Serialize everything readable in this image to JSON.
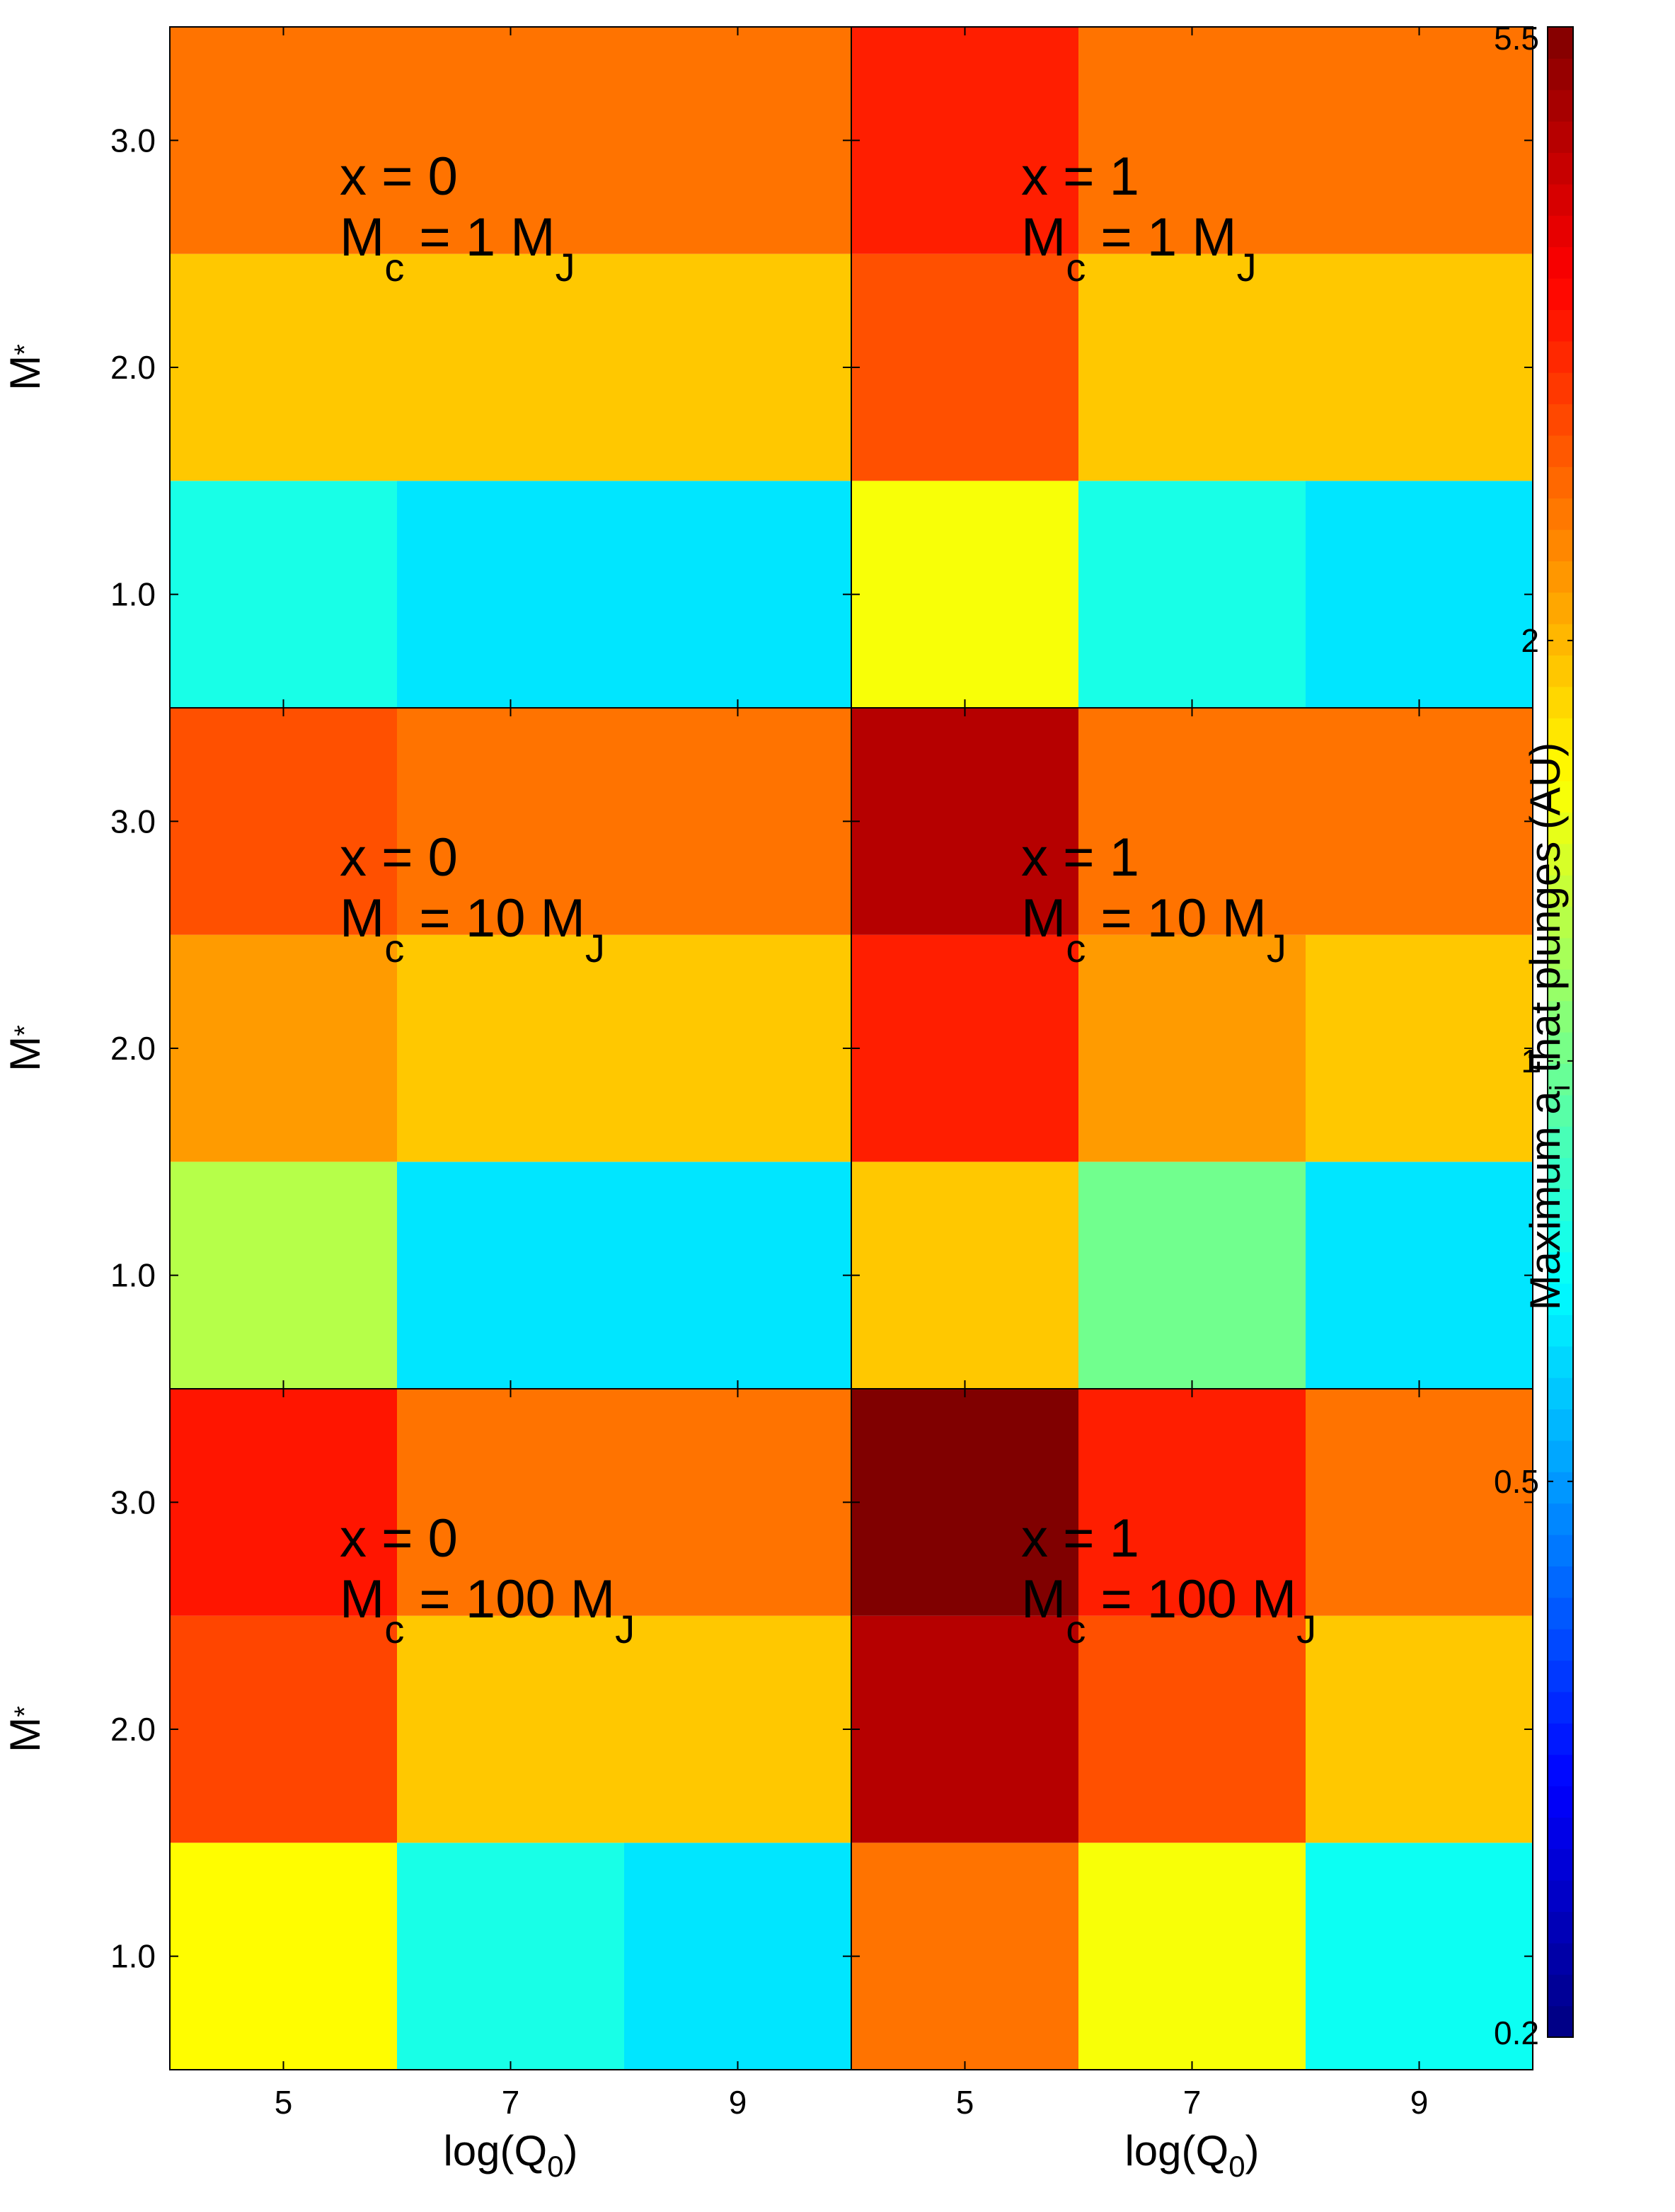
{
  "chart_data": {
    "type": "heatmap",
    "rows": 3,
    "cols": 2,
    "colorbar": {
      "label": "Maximum a",
      "label_sub": "i",
      "label_rest": " that plunges (AU)",
      "scale": "log",
      "range": [
        0.2,
        5.5
      ],
      "ticks": [
        {
          "value": 0.2,
          "text": "0.2"
        },
        {
          "value": 0.5,
          "text": "0.5"
        },
        {
          "value": 1,
          "text": "1"
        },
        {
          "value": 2,
          "text": "2"
        },
        {
          "value": 5.5,
          "text": "5.5"
        }
      ]
    },
    "x_axis": {
      "label": "log(Q",
      "label_sub": "0",
      "label_close": ")",
      "ticks": [
        {
          "value": 5,
          "text": "5"
        },
        {
          "value": 7,
          "text": "7"
        },
        {
          "value": 9,
          "text": "9"
        }
      ],
      "range": [
        4,
        10
      ],
      "categories": [
        5,
        7,
        9
      ]
    },
    "y_axis": {
      "label": "M",
      "label_sub": "*",
      "ticks": [
        {
          "value": 1,
          "text": "1.0"
        },
        {
          "value": 2,
          "text": "2.0"
        },
        {
          "value": 3,
          "text": "3.0"
        }
      ],
      "range": [
        0.5,
        3.5
      ],
      "categories": [
        1.0,
        2.0,
        3.0
      ]
    },
    "panels": [
      {
        "x_text": "x = 0",
        "mc_pre": "M",
        "mc_sub": "c",
        "mc_mid": " = 1 M",
        "mc_sub2": "J",
        "values": [
          [
            0.75,
            0.64,
            0.64
          ],
          [
            1.9,
            1.9,
            1.9
          ],
          [
            2.5,
            2.5,
            2.5
          ]
        ]
      },
      {
        "x_text": "x = 1",
        "mc_pre": "M",
        "mc_sub": "c",
        "mc_mid": " = 1 M",
        "mc_sub2": "J",
        "values": [
          [
            1.55,
            0.75,
            0.64
          ],
          [
            2.8,
            1.9,
            1.9
          ],
          [
            3.3,
            2.5,
            2.5
          ]
        ]
      },
      {
        "x_text": "x = 0",
        "mc_pre": "M",
        "mc_sub": "c",
        "mc_mid": " = 10 M",
        "mc_sub2": "J",
        "values": [
          [
            1.25,
            0.64,
            0.64
          ],
          [
            2.2,
            1.9,
            1.9
          ],
          [
            2.8,
            2.5,
            2.5
          ]
        ]
      },
      {
        "x_text": "x = 1",
        "mc_pre": "M",
        "mc_sub": "c",
        "mc_mid": " = 10 M",
        "mc_sub2": "J",
        "values": [
          [
            1.9,
            1.0,
            0.64
          ],
          [
            3.3,
            2.2,
            1.9
          ],
          [
            4.6,
            2.5,
            2.5
          ]
        ]
      },
      {
        "x_text": "x = 0",
        "mc_pre": "M",
        "mc_sub": "c",
        "mc_mid": " = 100 M",
        "mc_sub2": "J",
        "values": [
          [
            1.6,
            0.75,
            0.64
          ],
          [
            2.9,
            1.9,
            1.9
          ],
          [
            3.4,
            2.5,
            2.5
          ]
        ]
      },
      {
        "x_text": "x = 1",
        "mc_pre": "M",
        "mc_sub": "c",
        "mc_mid": " = 100 M",
        "mc_sub2": "J",
        "values": [
          [
            2.5,
            1.55,
            0.72
          ],
          [
            4.6,
            2.8,
            1.9
          ],
          [
            5.5,
            3.3,
            2.5
          ]
        ]
      }
    ]
  }
}
